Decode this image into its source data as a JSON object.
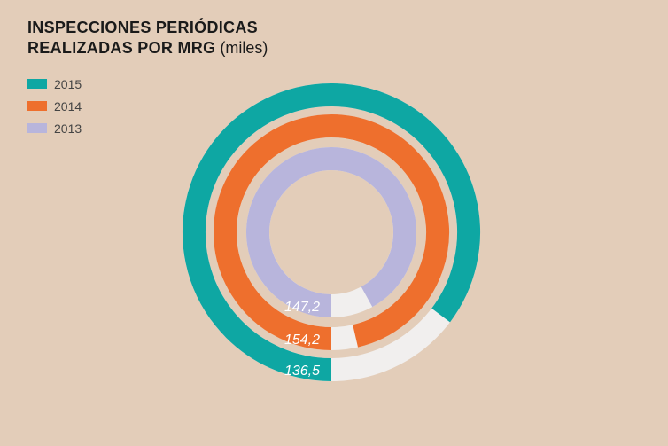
{
  "title": {
    "line1": "INSPECCIONES PERIÓDICAS",
    "line2": "REALIZADAS POR MRG",
    "unit": "(miles)"
  },
  "colors": {
    "background": "#e3cdb9",
    "track": "#f1efee"
  },
  "chart_data": {
    "type": "radial-bar",
    "title": "INSPECCIONES PERIÓDICAS REALIZADAS POR MRG (miles)",
    "unit": "miles",
    "max": 160,
    "series": [
      {
        "name": "2015",
        "value": 136.5,
        "label": "136,5",
        "color": "#0ea7a3"
      },
      {
        "name": "2014",
        "value": 154.2,
        "label": "154,2",
        "color": "#ee6f2d"
      },
      {
        "name": "2013",
        "value": 147.2,
        "label": "147,2",
        "color": "#b8b5dc"
      }
    ]
  }
}
